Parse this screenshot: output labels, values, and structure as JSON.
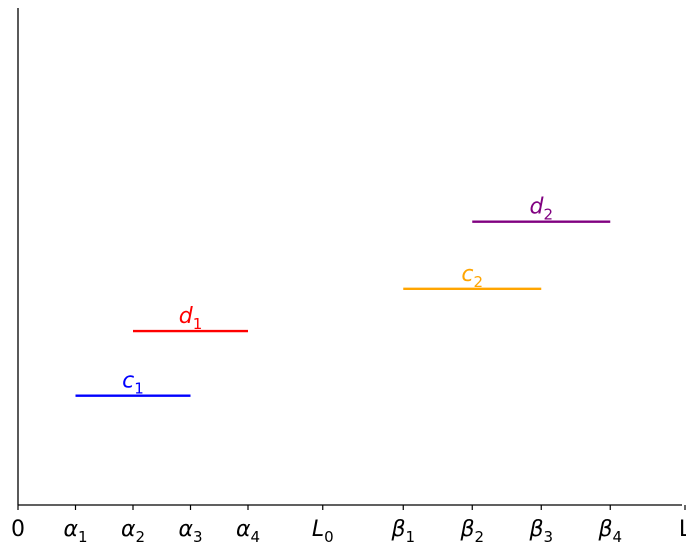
{
  "diagram": {
    "x_axis": {
      "range": [
        0,
        12
      ],
      "ticks": [
        {
          "value": 0,
          "base": "0",
          "sub": ""
        },
        {
          "value": 1,
          "base": "α",
          "sub": "1"
        },
        {
          "value": 2,
          "base": "α",
          "sub": "2"
        },
        {
          "value": 3,
          "base": "α",
          "sub": "3"
        },
        {
          "value": 4,
          "base": "α",
          "sub": "4"
        },
        {
          "value": 5.3,
          "base": "L",
          "sub": "0"
        },
        {
          "value": 6.7,
          "base": "β",
          "sub": "1"
        },
        {
          "value": 7.9,
          "base": "β",
          "sub": "2"
        },
        {
          "value": 9.1,
          "base": "β",
          "sub": "3"
        },
        {
          "value": 10.3,
          "base": "β",
          "sub": "4"
        },
        {
          "value": 11.6,
          "base": "L",
          "sub": ""
        }
      ]
    },
    "y_axis": {
      "range": [
        0,
        10
      ]
    },
    "segments": [
      {
        "base": "c",
        "sub": "1",
        "x_start": 1,
        "x_end": 3,
        "y": 2.2,
        "color": "#0000ff"
      },
      {
        "base": "d",
        "sub": "1",
        "x_start": 2,
        "x_end": 4,
        "y": 3.5,
        "color": "#ff0000"
      },
      {
        "base": "c",
        "sub": "2",
        "x_start": 6.7,
        "x_end": 9.1,
        "y": 4.35,
        "color": "#ffa500"
      },
      {
        "base": "d",
        "sub": "2",
        "x_start": 7.9,
        "x_end": 10.3,
        "y": 5.7,
        "color": "#800080"
      }
    ]
  }
}
